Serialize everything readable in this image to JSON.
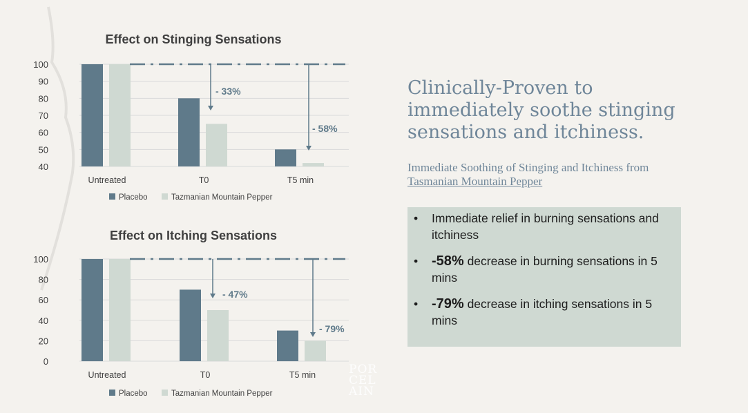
{
  "chart_data": [
    {
      "type": "bar",
      "title": "Effect on Stinging Sensations",
      "categories": [
        "Untreated",
        "T0",
        "T5 min"
      ],
      "series": [
        {
          "name": "Placebo",
          "values": [
            100,
            80,
            50
          ],
          "color": "#5f7a8a"
        },
        {
          "name": "Tazmanian Mountain Pepper",
          "values": [
            100,
            65,
            42
          ],
          "color": "#cfd9d2"
        }
      ],
      "ylim": [
        40,
        100
      ],
      "yticks": [
        40,
        50,
        60,
        70,
        80,
        90,
        100
      ],
      "legend": "bottom",
      "grid": true,
      "annotations": [
        "- 33%",
        "- 58%"
      ]
    },
    {
      "type": "bar",
      "title": "Effect on Itching Sensations",
      "categories": [
        "Untreated",
        "T0",
        "T5 min"
      ],
      "series": [
        {
          "name": "Placebo",
          "values": [
            100,
            70,
            30
          ],
          "color": "#5f7a8a"
        },
        {
          "name": "Tazmanian Mountain Pepper",
          "values": [
            100,
            50,
            20
          ],
          "color": "#cfd9d2"
        }
      ],
      "ylim": [
        0,
        100
      ],
      "yticks": [
        0,
        20,
        40,
        60,
        80,
        100
      ],
      "legend": "bottom",
      "grid": true,
      "annotations": [
        "- 47%",
        "- 79%"
      ]
    }
  ],
  "headline": "Clinically-Proven to immediately soothe stinging sensations and itchiness.",
  "subtitle": {
    "text": "Immediate Soothing of Stinging and Itchiness from ",
    "link": "Tasmanian Mountain Pepper"
  },
  "bullets": [
    {
      "bold": "",
      "text": "Immediate relief in burning sensations and itchiness"
    },
    {
      "bold": "-58%",
      "text": " decrease in burning sensations in 5 mins"
    },
    {
      "bold": "-79%",
      "text": " decrease in itching sensations in 5 mins"
    }
  ],
  "logo": "PORCELAIN",
  "accent": "#5f7a8a"
}
